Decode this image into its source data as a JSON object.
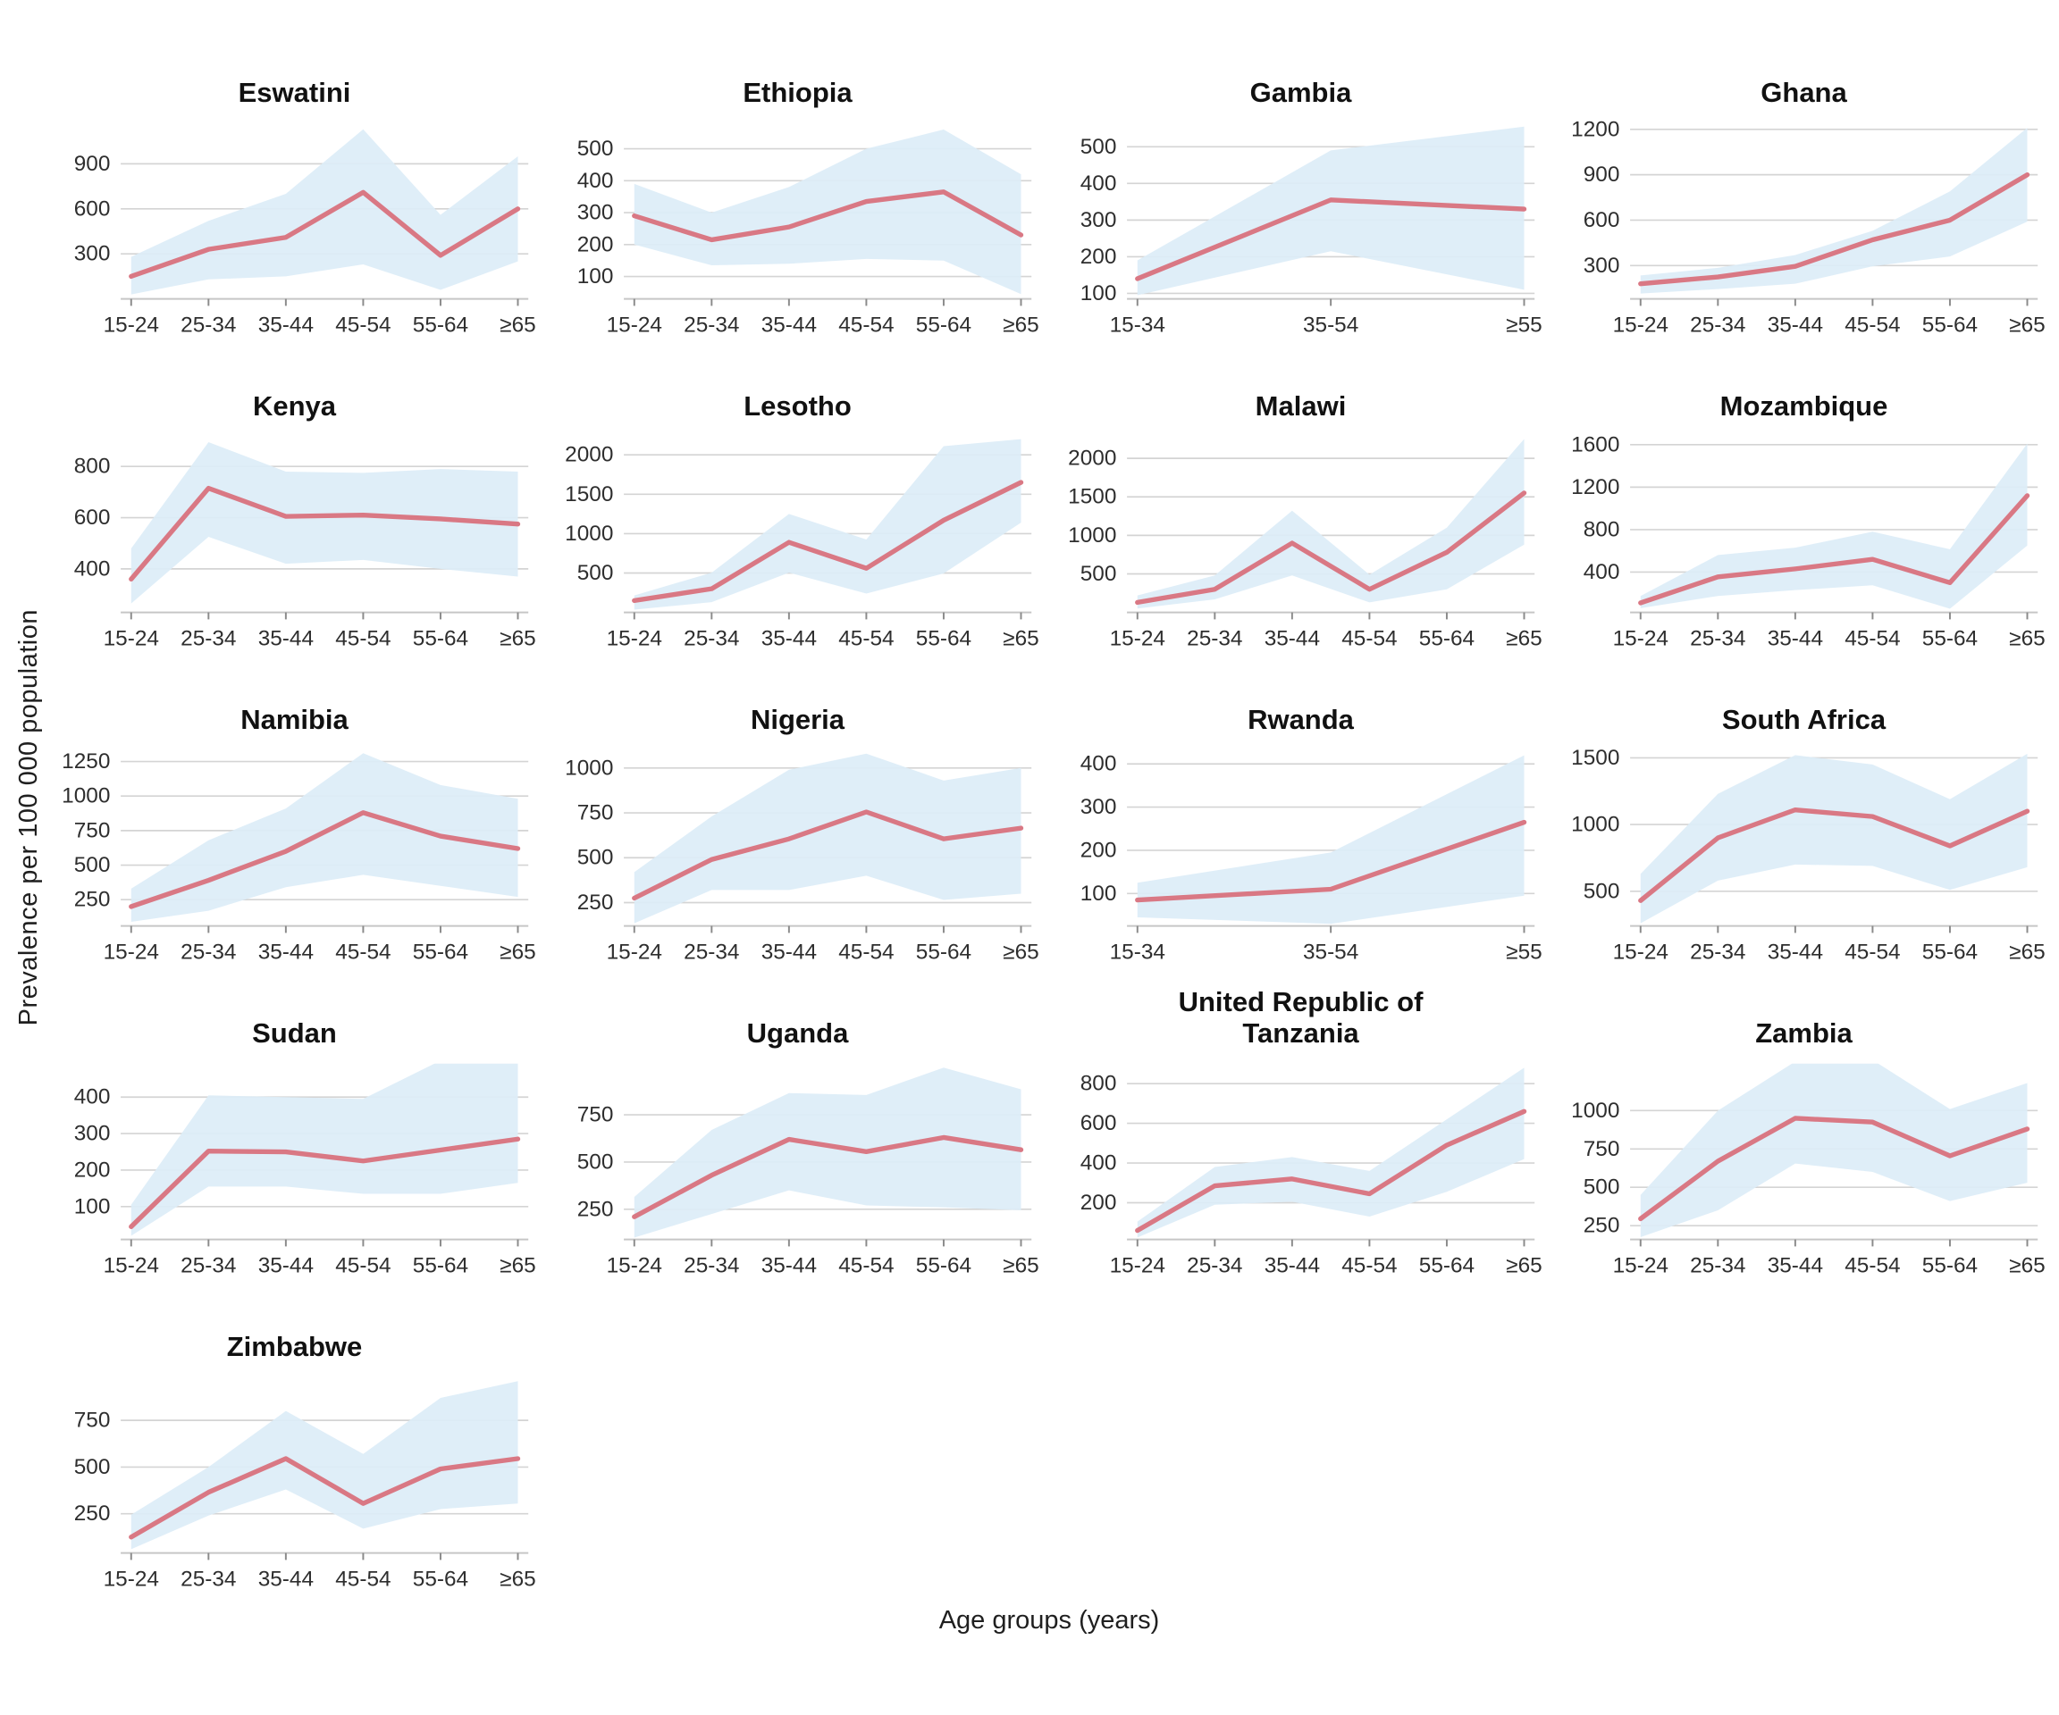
{
  "figure": {
    "y_axis_label": "Prevalence per 100 000 population",
    "x_axis_label": "Age groups (years)",
    "colors": {
      "line": "#d97884",
      "band": "#ddedf8",
      "grid": "#d4d4d4",
      "axis_line": "#c6c6c6",
      "tick_mark": "#8a8a8a",
      "tick_label": "#2e2e2e",
      "title": "#111111"
    }
  },
  "chart_data": [
    {
      "type": "line",
      "title": "Eswatini",
      "categories": [
        "15-24",
        "25-34",
        "35-44",
        "45-54",
        "55-64",
        "≥65"
      ],
      "values": [
        150,
        330,
        410,
        710,
        290,
        600
      ],
      "lower": [
        30,
        130,
        150,
        230,
        60,
        250
      ],
      "upper": [
        280,
        520,
        700,
        1130,
        560,
        950
      ],
      "yticks": [
        300,
        600,
        900
      ],
      "ylim": [
        0,
        1160
      ]
    },
    {
      "type": "line",
      "title": "Ethiopia",
      "categories": [
        "15-24",
        "25-34",
        "35-44",
        "45-54",
        "55-64",
        "≥65"
      ],
      "values": [
        290,
        215,
        255,
        335,
        365,
        230
      ],
      "lower": [
        200,
        135,
        140,
        155,
        150,
        45
      ],
      "upper": [
        390,
        300,
        380,
        500,
        560,
        420
      ],
      "yticks": [
        100,
        200,
        300,
        400,
        500
      ],
      "ylim": [
        30,
        575
      ]
    },
    {
      "type": "line",
      "title": "Gambia",
      "categories": [
        "15-34",
        "35-54",
        "≥55"
      ],
      "values": [
        140,
        355,
        330
      ],
      "lower": [
        95,
        215,
        110
      ],
      "upper": [
        190,
        490,
        555
      ],
      "yticks": [
        100,
        200,
        300,
        400,
        500
      ],
      "ylim": [
        85,
        560
      ]
    },
    {
      "type": "line",
      "title": "Ghana",
      "categories": [
        "15-24",
        "25-34",
        "35-44",
        "45-54",
        "55-64",
        "≥65"
      ],
      "values": [
        180,
        225,
        295,
        470,
        600,
        900
      ],
      "lower": [
        115,
        145,
        180,
        295,
        360,
        590
      ],
      "upper": [
        235,
        285,
        370,
        530,
        790,
        1210
      ],
      "yticks": [
        300,
        600,
        900,
        1200
      ],
      "ylim": [
        80,
        1230
      ]
    },
    {
      "type": "line",
      "title": "Kenya",
      "categories": [
        "15-24",
        "25-34",
        "35-44",
        "45-54",
        "55-64",
        "≥65"
      ],
      "values": [
        360,
        715,
        605,
        610,
        595,
        575
      ],
      "lower": [
        265,
        525,
        420,
        435,
        400,
        370
      ],
      "upper": [
        480,
        895,
        780,
        775,
        790,
        780
      ],
      "yticks": [
        400,
        600,
        800
      ],
      "ylim": [
        230,
        910
      ]
    },
    {
      "type": "line",
      "title": "Lesotho",
      "categories": [
        "15-24",
        "25-34",
        "35-44",
        "45-54",
        "55-64",
        "≥65"
      ],
      "values": [
        150,
        300,
        890,
        560,
        1170,
        1650
      ],
      "lower": [
        35,
        130,
        505,
        240,
        495,
        1140
      ],
      "upper": [
        215,
        505,
        1250,
        925,
        2110,
        2200
      ],
      "yticks": [
        500,
        1000,
        1500,
        2000
      ],
      "ylim": [
        0,
        2210
      ]
    },
    {
      "type": "line",
      "title": "Malawi",
      "categories": [
        "15-24",
        "25-34",
        "35-44",
        "45-54",
        "55-64",
        "≥65"
      ],
      "values": [
        130,
        300,
        900,
        300,
        780,
        1550
      ],
      "lower": [
        50,
        170,
        480,
        130,
        300,
        880
      ],
      "upper": [
        220,
        480,
        1320,
        490,
        1100,
        2250
      ],
      "yticks": [
        500,
        1000,
        1500,
        2000
      ],
      "ylim": [
        0,
        2260
      ]
    },
    {
      "type": "line",
      "title": "Mozambique",
      "categories": [
        "15-24",
        "25-34",
        "35-44",
        "45-54",
        "55-64",
        "≥65"
      ],
      "values": [
        110,
        355,
        430,
        520,
        300,
        1120
      ],
      "lower": [
        60,
        175,
        230,
        275,
        55,
        650
      ],
      "upper": [
        175,
        560,
        630,
        780,
        615,
        1610
      ],
      "yticks": [
        400,
        800,
        1200,
        1600
      ],
      "ylim": [
        20,
        1660
      ]
    },
    {
      "type": "line",
      "title": "Namibia",
      "categories": [
        "15-24",
        "25-34",
        "35-44",
        "45-54",
        "55-64",
        "≥65"
      ],
      "values": [
        200,
        390,
        600,
        880,
        710,
        620
      ],
      "lower": [
        90,
        170,
        340,
        430,
        350,
        270
      ],
      "upper": [
        330,
        680,
        910,
        1310,
        1080,
        980
      ],
      "yticks": [
        250,
        500,
        750,
        1000,
        1250
      ],
      "ylim": [
        60,
        1320
      ]
    },
    {
      "type": "line",
      "title": "Nigeria",
      "categories": [
        "15-24",
        "25-34",
        "35-44",
        "45-54",
        "55-64",
        "≥65"
      ],
      "values": [
        275,
        490,
        605,
        755,
        605,
        665
      ],
      "lower": [
        135,
        320,
        320,
        400,
        265,
        300
      ],
      "upper": [
        420,
        730,
        990,
        1080,
        930,
        1000
      ],
      "yticks": [
        250,
        500,
        750,
        1000
      ],
      "ylim": [
        120,
        1090
      ]
    },
    {
      "type": "line",
      "title": "Rwanda",
      "categories": [
        "15-34",
        "35-54",
        "≥55"
      ],
      "values": [
        85,
        110,
        265
      ],
      "lower": [
        45,
        30,
        95
      ],
      "upper": [
        125,
        195,
        420
      ],
      "yticks": [
        100,
        200,
        300,
        400
      ],
      "ylim": [
        25,
        428
      ]
    },
    {
      "type": "line",
      "title": "South Africa",
      "categories": [
        "15-24",
        "25-34",
        "35-44",
        "45-54",
        "55-64",
        "≥65"
      ],
      "values": [
        430,
        900,
        1110,
        1060,
        840,
        1100
      ],
      "lower": [
        260,
        580,
        700,
        690,
        510,
        680
      ],
      "upper": [
        630,
        1230,
        1520,
        1450,
        1190,
        1530
      ],
      "yticks": [
        500,
        1000,
        1500
      ],
      "ylim": [
        240,
        1545
      ]
    },
    {
      "type": "line",
      "title": "Sudan",
      "categories": [
        "15-24",
        "25-34",
        "35-44",
        "45-54",
        "55-64",
        "≥65"
      ],
      "values": [
        45,
        252,
        250,
        225,
        255,
        285
      ],
      "lower": [
        20,
        155,
        155,
        135,
        135,
        165
      ],
      "upper": [
        105,
        405,
        400,
        395,
        500,
        505
      ],
      "yticks": [
        100,
        200,
        300,
        400
      ],
      "ylim": [
        10,
        487
      ]
    },
    {
      "type": "line",
      "title": "Uganda",
      "categories": [
        "15-24",
        "25-34",
        "35-44",
        "45-54",
        "55-64",
        "≥65"
      ],
      "values": [
        210,
        430,
        620,
        555,
        630,
        565
      ],
      "lower": [
        100,
        225,
        350,
        270,
        260,
        245
      ],
      "upper": [
        315,
        670,
        865,
        855,
        1000,
        885
      ],
      "yticks": [
        250,
        500,
        750
      ],
      "ylim": [
        90,
        1012
      ]
    },
    {
      "type": "line",
      "title": "United Republic of Tanzania",
      "categories": [
        "15-24",
        "25-34",
        "35-44",
        "45-54",
        "55-64",
        "≥65"
      ],
      "values": [
        60,
        285,
        320,
        245,
        490,
        660
      ],
      "lower": [
        25,
        190,
        205,
        130,
        255,
        420
      ],
      "upper": [
        105,
        380,
        430,
        360,
        620,
        880
      ],
      "yticks": [
        200,
        400,
        600,
        800
      ],
      "ylim": [
        15,
        892
      ]
    },
    {
      "type": "line",
      "title": "Zambia",
      "categories": [
        "15-24",
        "25-34",
        "35-44",
        "45-54",
        "55-64",
        "≥65"
      ],
      "values": [
        295,
        670,
        950,
        925,
        705,
        880
      ],
      "lower": [
        175,
        350,
        655,
        600,
        410,
        530
      ],
      "upper": [
        450,
        1000,
        1320,
        1330,
        1010,
        1180
      ],
      "yticks": [
        250,
        500,
        750,
        1000
      ],
      "ylim": [
        160,
        1295
      ]
    },
    {
      "type": "line",
      "title": "Zimbabwe",
      "categories": [
        "15-24",
        "25-34",
        "35-44",
        "45-54",
        "55-64",
        "≥65"
      ],
      "values": [
        125,
        365,
        545,
        305,
        490,
        545
      ],
      "lower": [
        60,
        240,
        380,
        170,
        275,
        305
      ],
      "upper": [
        245,
        500,
        800,
        570,
        870,
        960
      ],
      "yticks": [
        250,
        500,
        750
      ],
      "ylim": [
        40,
        972
      ]
    }
  ]
}
